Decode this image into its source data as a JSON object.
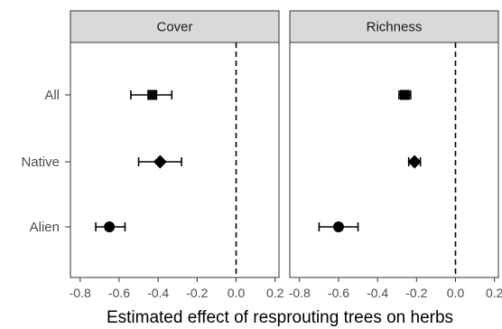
{
  "chart_data": {
    "type": "scatter",
    "subtype": "forest-plot-with-error-bars",
    "xlabel": "Estimated effect of resprouting trees on herbs",
    "ylabel": "",
    "categories": [
      "All",
      "Native",
      "Alien"
    ],
    "xlim": [
      -0.85,
      0.22
    ],
    "x_ticks": [
      "-0.8",
      "-0.6",
      "-0.4",
      "-0.2",
      "0.0",
      "0.2"
    ],
    "reference_line": {
      "x": 0,
      "style": "dashed"
    },
    "grid": false,
    "marker_shapes": {
      "All": "square",
      "Native": "diamond",
      "Alien": "circle"
    },
    "panels": [
      {
        "title": "Cover",
        "points": [
          {
            "category": "All",
            "estimate": -0.43,
            "lower": -0.54,
            "upper": -0.33
          },
          {
            "category": "Native",
            "estimate": -0.39,
            "lower": -0.5,
            "upper": -0.28
          },
          {
            "category": "Alien",
            "estimate": -0.65,
            "lower": -0.72,
            "upper": -0.57
          }
        ]
      },
      {
        "title": "Richness",
        "points": [
          {
            "category": "All",
            "estimate": -0.26,
            "lower": -0.29,
            "upper": -0.23
          },
          {
            "category": "Native",
            "estimate": -0.21,
            "lower": -0.24,
            "upper": -0.18
          },
          {
            "category": "Alien",
            "estimate": -0.6,
            "lower": -0.7,
            "upper": -0.5
          }
        ]
      }
    ]
  },
  "colors": {
    "strip_background": "#d9d9d9",
    "panel_border": "#333333",
    "marker": "#000000",
    "reference_line": "#000000"
  }
}
